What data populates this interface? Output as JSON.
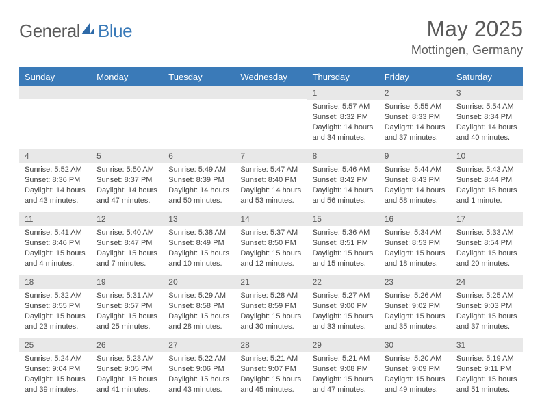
{
  "logo": {
    "word1": "General",
    "word2": "Blue"
  },
  "header": {
    "title": "May 2025",
    "location": "Mottingen, Germany"
  },
  "colors": {
    "accent": "#3a7ab8",
    "header_bg": "#3a7ab8",
    "header_fg": "#ffffff",
    "daynum_bg": "#e8e8e8",
    "text": "#5a5a5a",
    "body_text": "#444444"
  },
  "day_names": [
    "Sunday",
    "Monday",
    "Tuesday",
    "Wednesday",
    "Thursday",
    "Friday",
    "Saturday"
  ],
  "weeks": [
    [
      null,
      null,
      null,
      null,
      {
        "n": "1",
        "sunrise": "5:57 AM",
        "sunset": "8:32 PM",
        "daylight": "14 hours and 34 minutes."
      },
      {
        "n": "2",
        "sunrise": "5:55 AM",
        "sunset": "8:33 PM",
        "daylight": "14 hours and 37 minutes."
      },
      {
        "n": "3",
        "sunrise": "5:54 AM",
        "sunset": "8:34 PM",
        "daylight": "14 hours and 40 minutes."
      }
    ],
    [
      {
        "n": "4",
        "sunrise": "5:52 AM",
        "sunset": "8:36 PM",
        "daylight": "14 hours and 43 minutes."
      },
      {
        "n": "5",
        "sunrise": "5:50 AM",
        "sunset": "8:37 PM",
        "daylight": "14 hours and 47 minutes."
      },
      {
        "n": "6",
        "sunrise": "5:49 AM",
        "sunset": "8:39 PM",
        "daylight": "14 hours and 50 minutes."
      },
      {
        "n": "7",
        "sunrise": "5:47 AM",
        "sunset": "8:40 PM",
        "daylight": "14 hours and 53 minutes."
      },
      {
        "n": "8",
        "sunrise": "5:46 AM",
        "sunset": "8:42 PM",
        "daylight": "14 hours and 56 minutes."
      },
      {
        "n": "9",
        "sunrise": "5:44 AM",
        "sunset": "8:43 PM",
        "daylight": "14 hours and 58 minutes."
      },
      {
        "n": "10",
        "sunrise": "5:43 AM",
        "sunset": "8:44 PM",
        "daylight": "15 hours and 1 minute."
      }
    ],
    [
      {
        "n": "11",
        "sunrise": "5:41 AM",
        "sunset": "8:46 PM",
        "daylight": "15 hours and 4 minutes."
      },
      {
        "n": "12",
        "sunrise": "5:40 AM",
        "sunset": "8:47 PM",
        "daylight": "15 hours and 7 minutes."
      },
      {
        "n": "13",
        "sunrise": "5:38 AM",
        "sunset": "8:49 PM",
        "daylight": "15 hours and 10 minutes."
      },
      {
        "n": "14",
        "sunrise": "5:37 AM",
        "sunset": "8:50 PM",
        "daylight": "15 hours and 12 minutes."
      },
      {
        "n": "15",
        "sunrise": "5:36 AM",
        "sunset": "8:51 PM",
        "daylight": "15 hours and 15 minutes."
      },
      {
        "n": "16",
        "sunrise": "5:34 AM",
        "sunset": "8:53 PM",
        "daylight": "15 hours and 18 minutes."
      },
      {
        "n": "17",
        "sunrise": "5:33 AM",
        "sunset": "8:54 PM",
        "daylight": "15 hours and 20 minutes."
      }
    ],
    [
      {
        "n": "18",
        "sunrise": "5:32 AM",
        "sunset": "8:55 PM",
        "daylight": "15 hours and 23 minutes."
      },
      {
        "n": "19",
        "sunrise": "5:31 AM",
        "sunset": "8:57 PM",
        "daylight": "15 hours and 25 minutes."
      },
      {
        "n": "20",
        "sunrise": "5:29 AM",
        "sunset": "8:58 PM",
        "daylight": "15 hours and 28 minutes."
      },
      {
        "n": "21",
        "sunrise": "5:28 AM",
        "sunset": "8:59 PM",
        "daylight": "15 hours and 30 minutes."
      },
      {
        "n": "22",
        "sunrise": "5:27 AM",
        "sunset": "9:00 PM",
        "daylight": "15 hours and 33 minutes."
      },
      {
        "n": "23",
        "sunrise": "5:26 AM",
        "sunset": "9:02 PM",
        "daylight": "15 hours and 35 minutes."
      },
      {
        "n": "24",
        "sunrise": "5:25 AM",
        "sunset": "9:03 PM",
        "daylight": "15 hours and 37 minutes."
      }
    ],
    [
      {
        "n": "25",
        "sunrise": "5:24 AM",
        "sunset": "9:04 PM",
        "daylight": "15 hours and 39 minutes."
      },
      {
        "n": "26",
        "sunrise": "5:23 AM",
        "sunset": "9:05 PM",
        "daylight": "15 hours and 41 minutes."
      },
      {
        "n": "27",
        "sunrise": "5:22 AM",
        "sunset": "9:06 PM",
        "daylight": "15 hours and 43 minutes."
      },
      {
        "n": "28",
        "sunrise": "5:21 AM",
        "sunset": "9:07 PM",
        "daylight": "15 hours and 45 minutes."
      },
      {
        "n": "29",
        "sunrise": "5:21 AM",
        "sunset": "9:08 PM",
        "daylight": "15 hours and 47 minutes."
      },
      {
        "n": "30",
        "sunrise": "5:20 AM",
        "sunset": "9:09 PM",
        "daylight": "15 hours and 49 minutes."
      },
      {
        "n": "31",
        "sunrise": "5:19 AM",
        "sunset": "9:11 PM",
        "daylight": "15 hours and 51 minutes."
      }
    ]
  ],
  "labels": {
    "sunrise": "Sunrise:",
    "sunset": "Sunset:",
    "daylight": "Daylight:"
  }
}
